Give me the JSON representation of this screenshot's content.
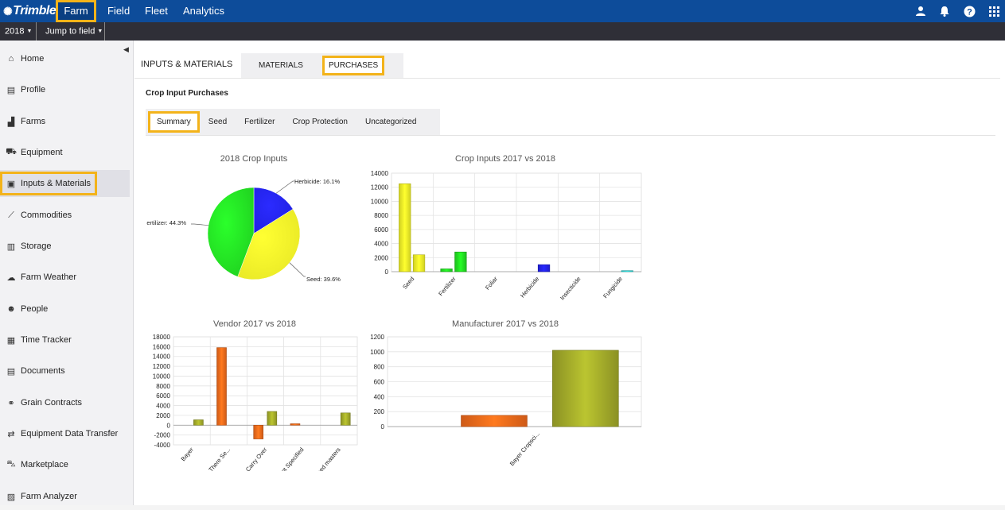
{
  "topnav": {
    "logo": "Trimble",
    "items": [
      "Farm",
      "Field",
      "Fleet",
      "Analytics"
    ],
    "icons": [
      "user-icon",
      "bell-icon",
      "help-icon",
      "apps-grid-icon"
    ],
    "bg_color": "#0d4c9a",
    "highlight_color": "#f3b31a"
  },
  "subbar": {
    "year": "2018",
    "jump": "Jump to field"
  },
  "sidebar": {
    "items": [
      {
        "label": "Home",
        "icon": "home-icon"
      },
      {
        "label": "Profile",
        "icon": "profile-icon"
      },
      {
        "label": "Farms",
        "icon": "farms-icon"
      },
      {
        "label": "Equipment",
        "icon": "tractor-icon"
      },
      {
        "label": "Inputs & Materials",
        "icon": "inputs-icon"
      },
      {
        "label": "Commodities",
        "icon": "chart-line-icon"
      },
      {
        "label": "Storage",
        "icon": "silo-icon"
      },
      {
        "label": "Farm Weather",
        "icon": "weather-icon"
      },
      {
        "label": "People",
        "icon": "people-icon"
      },
      {
        "label": "Time Tracker",
        "icon": "calendar-icon"
      },
      {
        "label": "Documents",
        "icon": "documents-icon"
      },
      {
        "label": "Grain Contracts",
        "icon": "handshake-icon"
      },
      {
        "label": "Equipment Data Transfer",
        "icon": "transfer-icon"
      },
      {
        "label": "Marketplace",
        "icon": "cart-icon"
      },
      {
        "label": "Farm Analyzer",
        "icon": "analyzer-icon"
      }
    ],
    "active": "Inputs & Materials"
  },
  "main": {
    "title": "INPUTS & MATERIALS",
    "tabs": [
      "MATERIALS",
      "PURCHASES"
    ],
    "active_tab": "PURCHASES",
    "section_title": "Crop Input Purchases",
    "subtabs": [
      "Summary",
      "Seed",
      "Fertilizer",
      "Crop Protection",
      "Uncategorized"
    ],
    "active_subtab": "Summary"
  },
  "chart_data": [
    {
      "type": "pie",
      "title": "2018 Crop Inputs",
      "slices": [
        {
          "label": "Herbicide: 16.1%",
          "value": 16.1,
          "color": "#2222ee"
        },
        {
          "label": "Seed: 39.6%",
          "value": 39.6,
          "color": "#f5f528"
        },
        {
          "label": "ertilizer: 44.3%",
          "value": 44.3,
          "color": "#22dd22"
        }
      ]
    },
    {
      "type": "bar",
      "title": "Crop Inputs 2017 vs 2018",
      "categories": [
        "Seed",
        "Fertilizer",
        "Foliar",
        "Herbicide",
        "Insecticide",
        "Fungicide"
      ],
      "ylim": [
        0,
        14000
      ],
      "yticks": [
        0,
        2000,
        4000,
        6000,
        8000,
        10000,
        12000,
        14000
      ],
      "bars": [
        {
          "category": "Seed",
          "value": 12500,
          "slot": 0,
          "color": "#f5f528"
        },
        {
          "category": "Seed",
          "value": 2400,
          "slot": 1,
          "color": "#f5f528"
        },
        {
          "category": "Fertilizer",
          "value": 400,
          "slot": 0,
          "color": "#22dd22"
        },
        {
          "category": "Fertilizer",
          "value": 2800,
          "slot": 1,
          "color": "#22dd22"
        },
        {
          "category": "Herbicide",
          "value": 1000,
          "slot": 1,
          "color": "#2222ee"
        },
        {
          "category": "Fungicide",
          "value": 150,
          "slot": 1,
          "color": "#33dddd"
        }
      ]
    },
    {
      "type": "bar",
      "title": "Vendor 2017 vs 2018",
      "categories": [
        "Bayer",
        "Been There Se...",
        "Carry Over",
        "Not Specified",
        "Seed masters"
      ],
      "ylim": [
        -4000,
        18000
      ],
      "yticks": [
        -4000,
        -2000,
        0,
        2000,
        4000,
        6000,
        8000,
        10000,
        12000,
        14000,
        16000,
        18000
      ],
      "bars": [
        {
          "category": "Bayer",
          "value": 1100,
          "slot": 1,
          "color": "#a3ab2a"
        },
        {
          "category": "Been There Se...",
          "value": 15800,
          "slot": 0,
          "color": "#f26a1b"
        },
        {
          "category": "Carry Over",
          "value": -2800,
          "slot": 0,
          "color": "#f26a1b"
        },
        {
          "category": "Carry Over",
          "value": 2800,
          "slot": 1,
          "color": "#a3ab2a"
        },
        {
          "category": "Not Specified",
          "value": 300,
          "slot": 0,
          "color": "#f26a1b"
        },
        {
          "category": "Seed masters",
          "value": 2500,
          "slot": 1,
          "color": "#a3ab2a"
        }
      ]
    },
    {
      "type": "bar",
      "title": "Manufacturer 2017 vs 2018",
      "categories": [
        "Bayer Cropsci..."
      ],
      "ylim": [
        0,
        1200
      ],
      "yticks": [
        0,
        200,
        400,
        600,
        800,
        1000,
        1200
      ],
      "bars": [
        {
          "category": "Bayer Cropsci...",
          "value": 150,
          "slot": 0,
          "color": "#f26a1b"
        },
        {
          "category": "Bayer Cropsci...",
          "value": 1020,
          "slot": 1,
          "color": "#a3ab2a"
        }
      ]
    }
  ]
}
